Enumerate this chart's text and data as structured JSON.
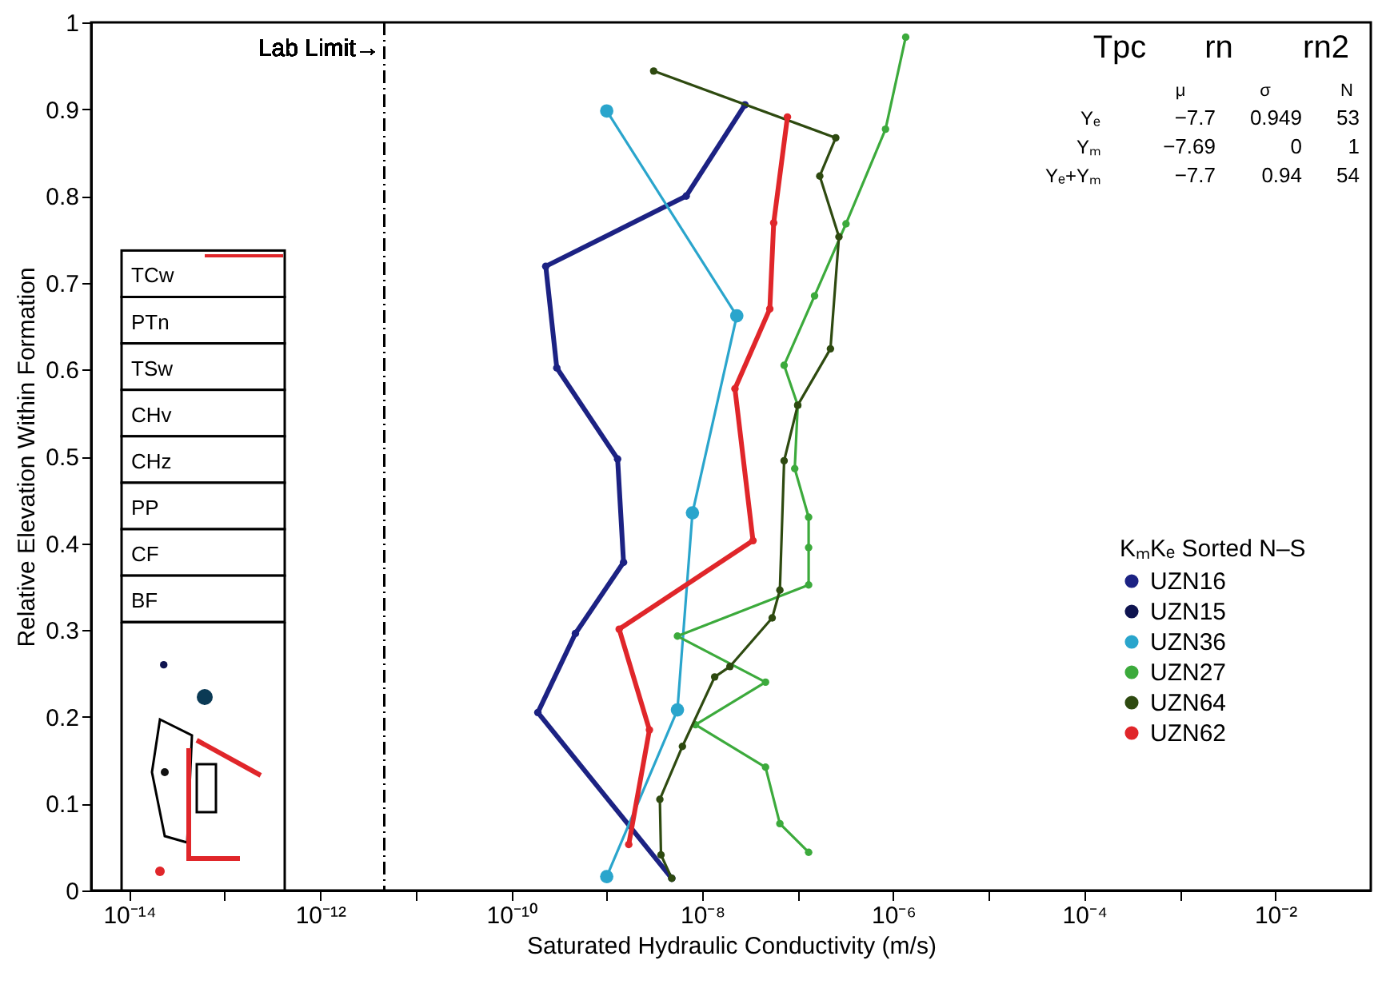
{
  "chart_data": {
    "type": "line",
    "xlabel": "Saturated Hydraulic Conductivity (m/s)",
    "ylabel": "Relative Elevation Within Formation",
    "legend_title": "KₘKₑ Sorted N–S",
    "log": "x",
    "grid": false,
    "legend": "right",
    "marker": "circle",
    "line_style": "solid",
    "xlim": [
      4e-15,
      0.1
    ],
    "xticks": [
      {
        "value": 1e-14,
        "label": "10⁻¹⁴"
      },
      {
        "value": 1e-13,
        "label": null
      },
      {
        "value": 1e-12,
        "label": "10⁻¹²"
      },
      {
        "value": 1e-11,
        "label": null
      },
      {
        "value": 1e-10,
        "label": "10⁻¹⁰"
      },
      {
        "value": 1e-09,
        "label": null
      },
      {
        "value": 1e-08,
        "label": "10⁻⁸"
      },
      {
        "value": 1e-07,
        "label": null
      },
      {
        "value": 1e-06,
        "label": "10⁻⁶"
      },
      {
        "value": 1e-05,
        "label": null
      },
      {
        "value": 0.0001,
        "label": "10⁻⁴"
      },
      {
        "value": 0.001,
        "label": null
      },
      {
        "value": 0.01,
        "label": "10⁻²"
      }
    ],
    "ylim": [
      0,
      1
    ],
    "yticks": [
      0,
      0.1,
      0.2,
      0.3,
      0.4,
      0.5,
      0.6,
      0.7,
      0.8,
      0.9,
      1
    ],
    "ref_lines": [
      {
        "axis": "x",
        "value": 4.7e-12,
        "label": "Lab Limit→",
        "color": "#000000",
        "line_style": "dashed"
      }
    ],
    "series": [
      {
        "name": "UZN16",
        "color": "#1c2283",
        "x": [
          2.8e-08,
          6.8e-09,
          2.3e-10,
          3e-10,
          1.3e-09,
          1.5e-09,
          4.7e-10,
          1.9e-10,
          4.8e-09
        ],
        "values": [
          0.905,
          0.8,
          0.719,
          0.602,
          0.497,
          0.378,
          0.296,
          0.205,
          0.014
        ]
      },
      {
        "name": "UZN15",
        "color": "#0f1450",
        "x": [
          2.3e-14
        ],
        "values": [
          0.26
        ]
      },
      {
        "name": "UZN36",
        "color": "#2aa5cc",
        "x": [
          1e-09,
          2.3e-08,
          7.9e-09,
          5.5e-09,
          1e-09
        ],
        "values": [
          0.898,
          0.662,
          0.435,
          0.208,
          0.016
        ]
      },
      {
        "name": "UZN27",
        "color": "#3caa3c",
        "x": [
          1.35e-06,
          8.3e-07,
          3.2e-07,
          1.5e-07,
          7.2e-08,
          1e-07,
          9.3e-08,
          1.3e-07,
          1.3e-07,
          1.3e-07,
          5.5e-09,
          4.6e-08,
          8.5e-09,
          4.6e-08,
          6.5e-08,
          1.3e-07
        ],
        "values": [
          0.983,
          0.877,
          0.768,
          0.685,
          0.605,
          0.559,
          0.486,
          0.43,
          0.395,
          0.352,
          0.293,
          0.24,
          0.191,
          0.142,
          0.077,
          0.044
        ]
      },
      {
        "name": "UZN64",
        "color": "#2e4a10",
        "x": [
          3.1e-09,
          2.5e-07,
          1.7e-07,
          2.7e-07,
          2.2e-07,
          1e-07,
          7.2e-08,
          6.5e-08,
          5.4e-08,
          1.95e-08,
          1.35e-08,
          6.2e-09,
          3.6e-09,
          3.7e-09,
          4.8e-09
        ],
        "values": [
          0.944,
          0.867,
          0.823,
          0.753,
          0.624,
          0.559,
          0.495,
          0.346,
          0.314,
          0.258,
          0.246,
          0.166,
          0.105,
          0.041,
          0.014
        ]
      },
      {
        "name": "UZN62",
        "color": "#e0262a",
        "x": [
          7.8e-08,
          5.6e-08,
          5.1e-08,
          2.2e-08,
          3.4e-08,
          1.35e-09,
          2.8e-09,
          1.7e-09
        ],
        "values": [
          0.891,
          0.769,
          0.67,
          0.578,
          0.403,
          0.301,
          0.185,
          0.053
        ]
      }
    ],
    "annotations": [
      "Tpc",
      "rn",
      "rn2",
      "μ",
      "σ",
      "N",
      "Yₑ",
      "−7.7",
      "0.949",
      "53",
      "Yₘ",
      "−7.69",
      "0",
      "1",
      "Yₑ+Yₘ",
      "−7.7",
      "0.94",
      "54",
      "TCw",
      "PTn",
      "TSw",
      "CHv",
      "CHz",
      "PP",
      "CF",
      "BF"
    ]
  }
}
